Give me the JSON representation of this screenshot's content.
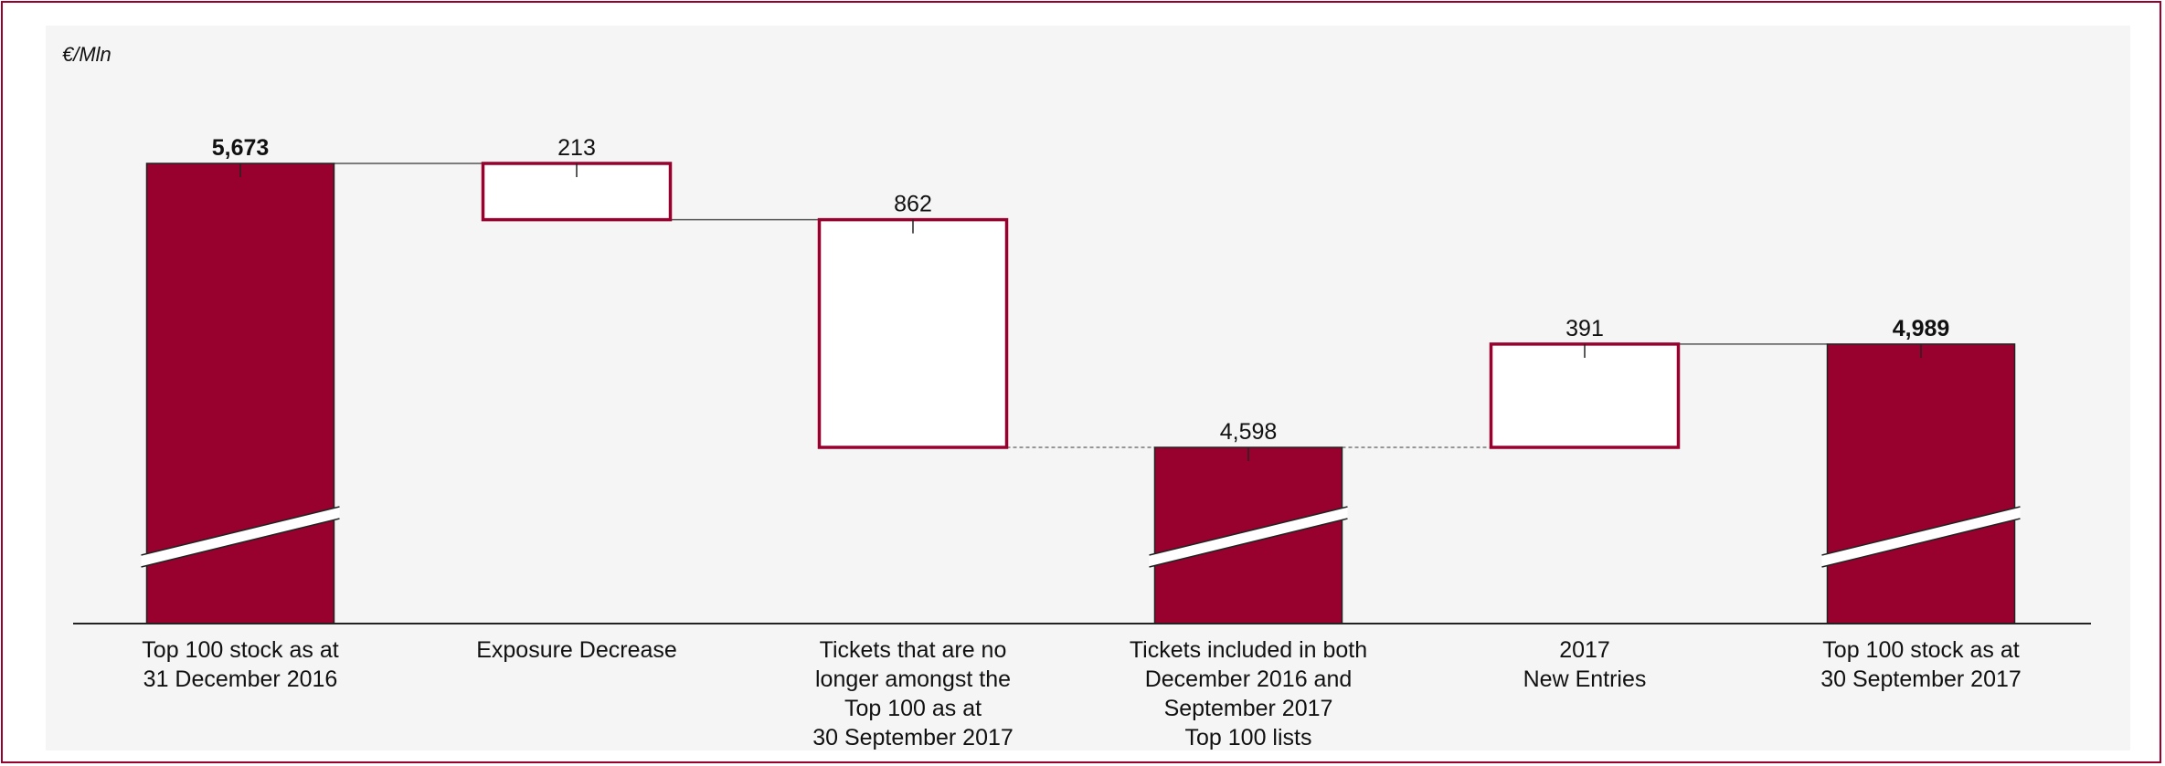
{
  "unit_label": "€/Mln",
  "colors": {
    "accent": "#98002E",
    "panel": "#f5f5f5",
    "frame": "#98002E"
  },
  "chart_data": {
    "type": "bar",
    "subtype": "waterfall",
    "ylabel": "€/Mln",
    "axis_broken": true,
    "categories": [
      "Top 100 stock as at\n31 December 2016",
      "Exposure Decrease",
      "Tickets that are no\nlonger amongst the\nTop 100 as at\n30 September 2017",
      "Tickets included in both\nDecember 2016 and\nSeptember 2017\nTop 100 lists",
      "2017\nNew Entries",
      "Top 100 stock as at\n30 September 2017"
    ],
    "values": [
      5673,
      -213,
      -862,
      4598,
      391,
      4989
    ],
    "value_labels": [
      "5,673",
      "213",
      "862",
      "4,598",
      "391",
      "4,989"
    ],
    "bar_kinds": [
      "total",
      "decrease",
      "decrease",
      "total",
      "increase",
      "total"
    ],
    "bold_labels": [
      true,
      false,
      false,
      false,
      false,
      true
    ]
  }
}
